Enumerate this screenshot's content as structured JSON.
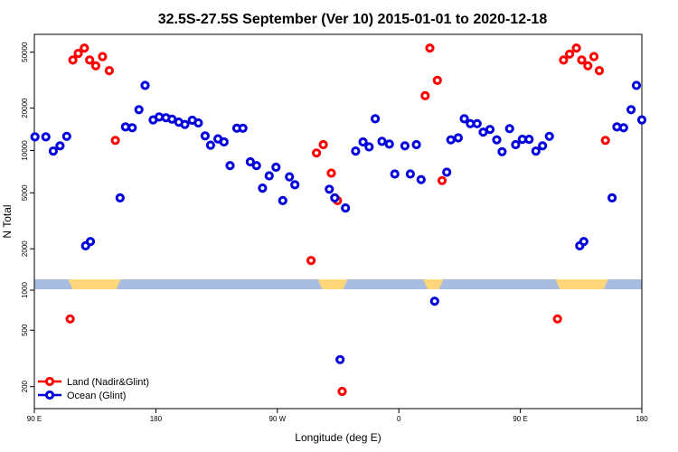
{
  "chart_data": {
    "type": "scatter",
    "title": "32.5S-27.5S September (Ver 10)   2015-01-01 to 2020-12-18",
    "xlabel": "Longitude (deg E)",
    "ylabel": "N Total",
    "x_scale": "longitude-wrapped",
    "xlim_unwrapped": [
      90,
      540
    ],
    "x_ticks": [
      {
        "value": 90,
        "label": "90 E"
      },
      {
        "value": 180,
        "label": "180"
      },
      {
        "value": 270,
        "label": "90 W"
      },
      {
        "value": 360,
        "label": "0"
      },
      {
        "value": 450,
        "label": "90 E"
      },
      {
        "value": 540,
        "label": "180"
      }
    ],
    "y_scale": "log",
    "upper_panel": {
      "ylim": [
        1000,
        65000
      ],
      "y_ticks": [
        {
          "value": 1000,
          "label": "1000"
        },
        {
          "value": 2000,
          "label": "2000"
        },
        {
          "value": 5000,
          "label": "5000"
        },
        {
          "value": 10000,
          "label": "10000"
        },
        {
          "value": 20000,
          "label": "20000"
        },
        {
          "value": 50000,
          "label": "50000"
        }
      ]
    },
    "lower_panel": {
      "ylim": [
        140,
        1000
      ],
      "y_ticks": [
        {
          "value": 200,
          "label": "200"
        },
        {
          "value": 500,
          "label": "500"
        },
        {
          "value": 1000,
          "label": "1000"
        }
      ]
    },
    "land_ocean_band": {
      "ocean_color": "#a8bde0",
      "land_color": "#ffd77a",
      "land_segments": [
        [
          115,
          154
        ],
        [
          300,
          322
        ],
        [
          378,
          393
        ],
        [
          476,
          515
        ]
      ]
    },
    "series": [
      {
        "name": "Land (Nadir&Glint)",
        "color": "#ff0000",
        "points": [
          [
            116.5,
            600
          ],
          [
            118.5,
            44000
          ],
          [
            122.5,
            49000
          ],
          [
            127,
            53500
          ],
          [
            131,
            44000
          ],
          [
            135.5,
            40000
          ],
          [
            140.5,
            46500
          ],
          [
            145.5,
            37000
          ],
          [
            150,
            11800
          ],
          [
            295,
            1650
          ],
          [
            299,
            9600
          ],
          [
            304,
            11000
          ],
          [
            310,
            6900
          ],
          [
            314.5,
            4400
          ],
          [
            318,
            185
          ],
          [
            379.5,
            24500
          ],
          [
            383,
            53500
          ],
          [
            388.5,
            31500
          ],
          [
            392,
            6100
          ],
          [
            477.5,
            600
          ],
          [
            482,
            44000
          ],
          [
            486.5,
            48500
          ],
          [
            491.5,
            53500
          ],
          [
            495.5,
            44000
          ],
          [
            500,
            40000
          ],
          [
            504.5,
            46500
          ],
          [
            508.5,
            37000
          ],
          [
            513,
            11800
          ]
        ]
      },
      {
        "name": "Ocean (Glint)",
        "color": "#0000dd",
        "points": [
          [
            90.5,
            12500
          ],
          [
            98.5,
            12500
          ],
          [
            104,
            9900
          ],
          [
            109,
            10800
          ],
          [
            114,
            12600
          ],
          [
            128,
            2100
          ],
          [
            131.5,
            2250
          ],
          [
            153.5,
            4600
          ],
          [
            157.5,
            14700
          ],
          [
            162.5,
            14500
          ],
          [
            167.5,
            19500
          ],
          [
            172,
            29000
          ],
          [
            178,
            16500
          ],
          [
            182.5,
            17300
          ],
          [
            187.5,
            17100
          ],
          [
            192,
            16700
          ],
          [
            197,
            15900
          ],
          [
            201.5,
            15300
          ],
          [
            207,
            16400
          ],
          [
            211.5,
            15700
          ],
          [
            216.5,
            12700
          ],
          [
            220.5,
            10900
          ],
          [
            226,
            12100
          ],
          [
            230.5,
            11500
          ],
          [
            235,
            7800
          ],
          [
            240,
            14400
          ],
          [
            244.5,
            14400
          ],
          [
            250,
            8300
          ],
          [
            254.5,
            7800
          ],
          [
            259,
            5400
          ],
          [
            264,
            6600
          ],
          [
            269,
            7600
          ],
          [
            274,
            4400
          ],
          [
            279,
            6500
          ],
          [
            283,
            5700
          ],
          [
            308.5,
            5300
          ],
          [
            312.5,
            4600
          ],
          [
            316.5,
            310
          ],
          [
            320.5,
            3900
          ],
          [
            328,
            9900
          ],
          [
            333.5,
            11500
          ],
          [
            338,
            10600
          ],
          [
            342.5,
            16800
          ],
          [
            347.5,
            11600
          ],
          [
            353,
            11100
          ],
          [
            357,
            6800
          ],
          [
            364.5,
            10800
          ],
          [
            368.5,
            6800
          ],
          [
            373,
            11000
          ],
          [
            376.5,
            6200
          ],
          [
            386.5,
            800
          ],
          [
            395.5,
            7000
          ],
          [
            398.5,
            11900
          ],
          [
            404,
            12300
          ],
          [
            408.5,
            16800
          ],
          [
            413,
            15500
          ],
          [
            418,
            15500
          ],
          [
            422.5,
            13500
          ],
          [
            427.5,
            14100
          ],
          [
            432.5,
            11900
          ],
          [
            436.5,
            9800
          ],
          [
            442,
            14300
          ],
          [
            446.5,
            11000
          ],
          [
            451.5,
            12000
          ],
          [
            456.5,
            12000
          ],
          [
            461.5,
            9900
          ],
          [
            466.5,
            10800
          ],
          [
            471.5,
            12600
          ],
          [
            494,
            2100
          ],
          [
            497,
            2250
          ],
          [
            518,
            4600
          ],
          [
            521.5,
            14700
          ],
          [
            526.5,
            14500
          ],
          [
            532,
            19500
          ],
          [
            536,
            29000
          ],
          [
            540,
            16500
          ]
        ]
      }
    ],
    "legend_position": "bottom-left",
    "grid": false
  }
}
